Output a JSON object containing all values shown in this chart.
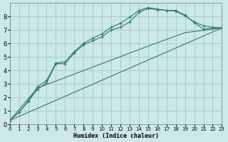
{
  "xlabel": "Humidex (Indice chaleur)",
  "bg_color": "#cce8e8",
  "grid_color": "#aacccc",
  "line_color": "#2d7a6a",
  "xlim": [
    0,
    23
  ],
  "ylim": [
    0,
    9
  ],
  "xticks": [
    0,
    1,
    2,
    3,
    4,
    5,
    6,
    7,
    8,
    9,
    10,
    11,
    12,
    13,
    14,
    15,
    16,
    17,
    18,
    19,
    20,
    21,
    22,
    23
  ],
  "yticks": [
    0,
    1,
    2,
    3,
    4,
    5,
    6,
    7,
    8
  ],
  "lines": [
    {
      "x": [
        0,
        1,
        2,
        3,
        4,
        5,
        6,
        7,
        8,
        9,
        10,
        11,
        12,
        13,
        14,
        15,
        16,
        17,
        18,
        19,
        20,
        21,
        22,
        23
      ],
      "y": [
        0.3,
        0.9,
        1.7,
        2.6,
        3.1,
        4.5,
        4.5,
        5.3,
        5.9,
        6.2,
        6.5,
        7.0,
        7.2,
        7.6,
        8.3,
        8.6,
        8.5,
        8.45,
        8.4,
        8.05,
        7.6,
        7.3,
        7.2,
        7.15
      ],
      "marker": true
    },
    {
      "x": [
        0,
        1,
        2,
        3,
        4,
        5,
        6,
        7,
        8,
        9,
        10,
        11,
        12,
        13,
        14,
        15,
        16,
        17,
        18,
        19,
        20,
        21,
        22,
        23
      ],
      "y": [
        0.3,
        0.9,
        1.75,
        2.8,
        3.25,
        4.55,
        4.65,
        5.4,
        6.0,
        6.4,
        6.7,
        7.2,
        7.5,
        7.95,
        8.45,
        8.65,
        8.55,
        8.45,
        8.45,
        8.1,
        7.55,
        7.05,
        7.15,
        7.15
      ],
      "marker": true
    },
    {
      "x": [
        0,
        23
      ],
      "y": [
        0.3,
        7.15
      ],
      "marker": false
    },
    {
      "x": [
        0,
        3,
        15,
        19,
        23
      ],
      "y": [
        0.3,
        2.7,
        5.8,
        6.8,
        7.15
      ],
      "marker": false
    }
  ]
}
